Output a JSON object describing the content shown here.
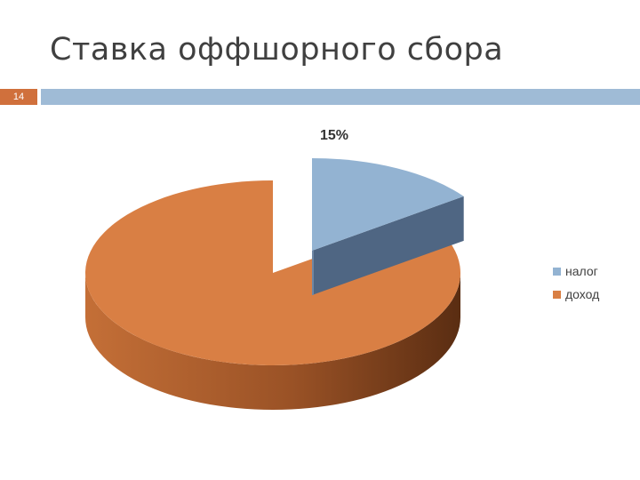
{
  "slide": {
    "title": "Ставка оффшорного сбора",
    "number": "14"
  },
  "chart_data": {
    "type": "pie",
    "title": "",
    "style": "3d",
    "legend_position": "right",
    "slices": [
      {
        "name": "налог",
        "value": 15,
        "label": "15%",
        "color": "#93b3d2",
        "side_color": "#4f6683"
      },
      {
        "name": "доход",
        "value": 85,
        "label": "",
        "color": "#d97f44",
        "side_color": "#93522a"
      }
    ]
  }
}
